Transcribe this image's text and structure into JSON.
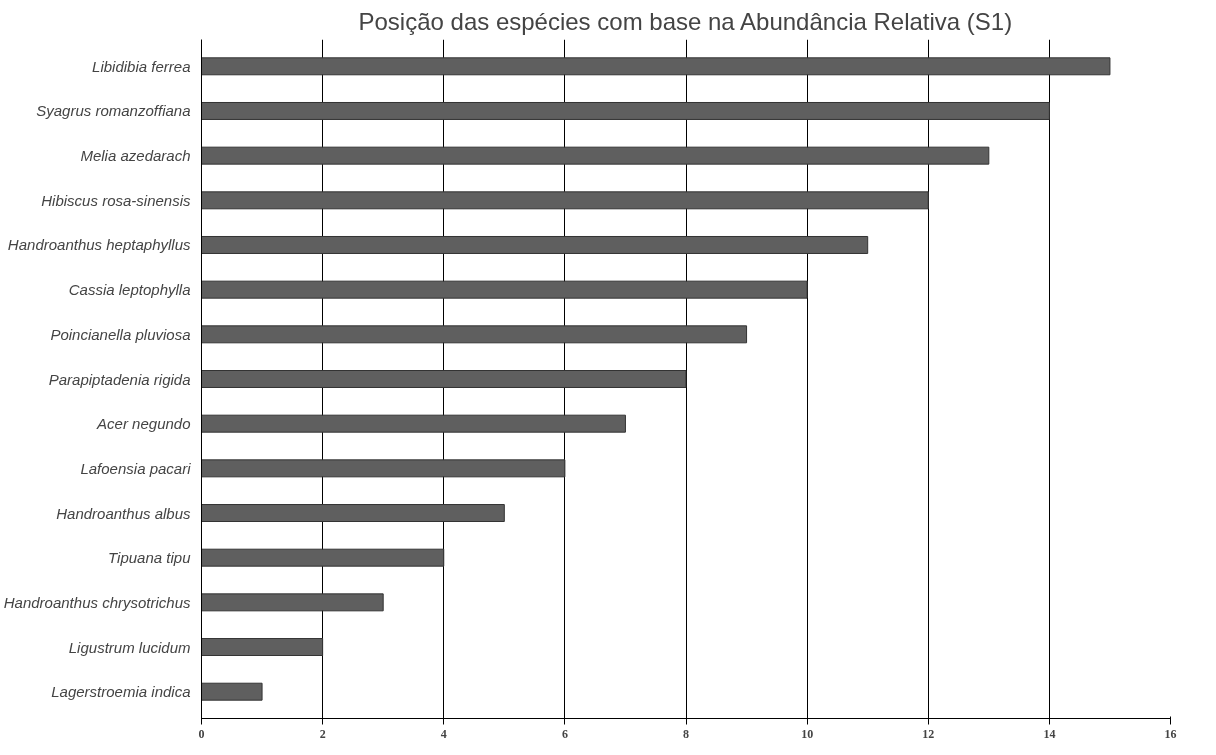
{
  "chart_data": {
    "type": "bar",
    "orientation": "horizontal",
    "title": "Posição das espécies com base na Abundância Relativa (S1)",
    "categories": [
      "Libidibia ferrea",
      "Syagrus romanzoffiana",
      "Melia azedarach",
      "Hibiscus rosa-sinensis",
      "Handroanthus heptaphyllus",
      "Cassia leptophylla",
      "Poincianella pluviosa",
      "Parapiptadenia rigida",
      "Acer negundo",
      "Lafoensia pacari",
      "Handroanthus albus",
      "Tipuana tipu",
      "Handroanthus chrysotrichus",
      "Ligustrum lucidum",
      "Lagerstroemia indica"
    ],
    "values": [
      15,
      14,
      13,
      12,
      11,
      10,
      9,
      8,
      7,
      6,
      5,
      4,
      3,
      2,
      1
    ],
    "color": "#5f5f5f",
    "xlim": [
      0,
      16
    ],
    "xticks": [
      0,
      2,
      4,
      6,
      8,
      10,
      12,
      14,
      16
    ],
    "grid": "x"
  }
}
